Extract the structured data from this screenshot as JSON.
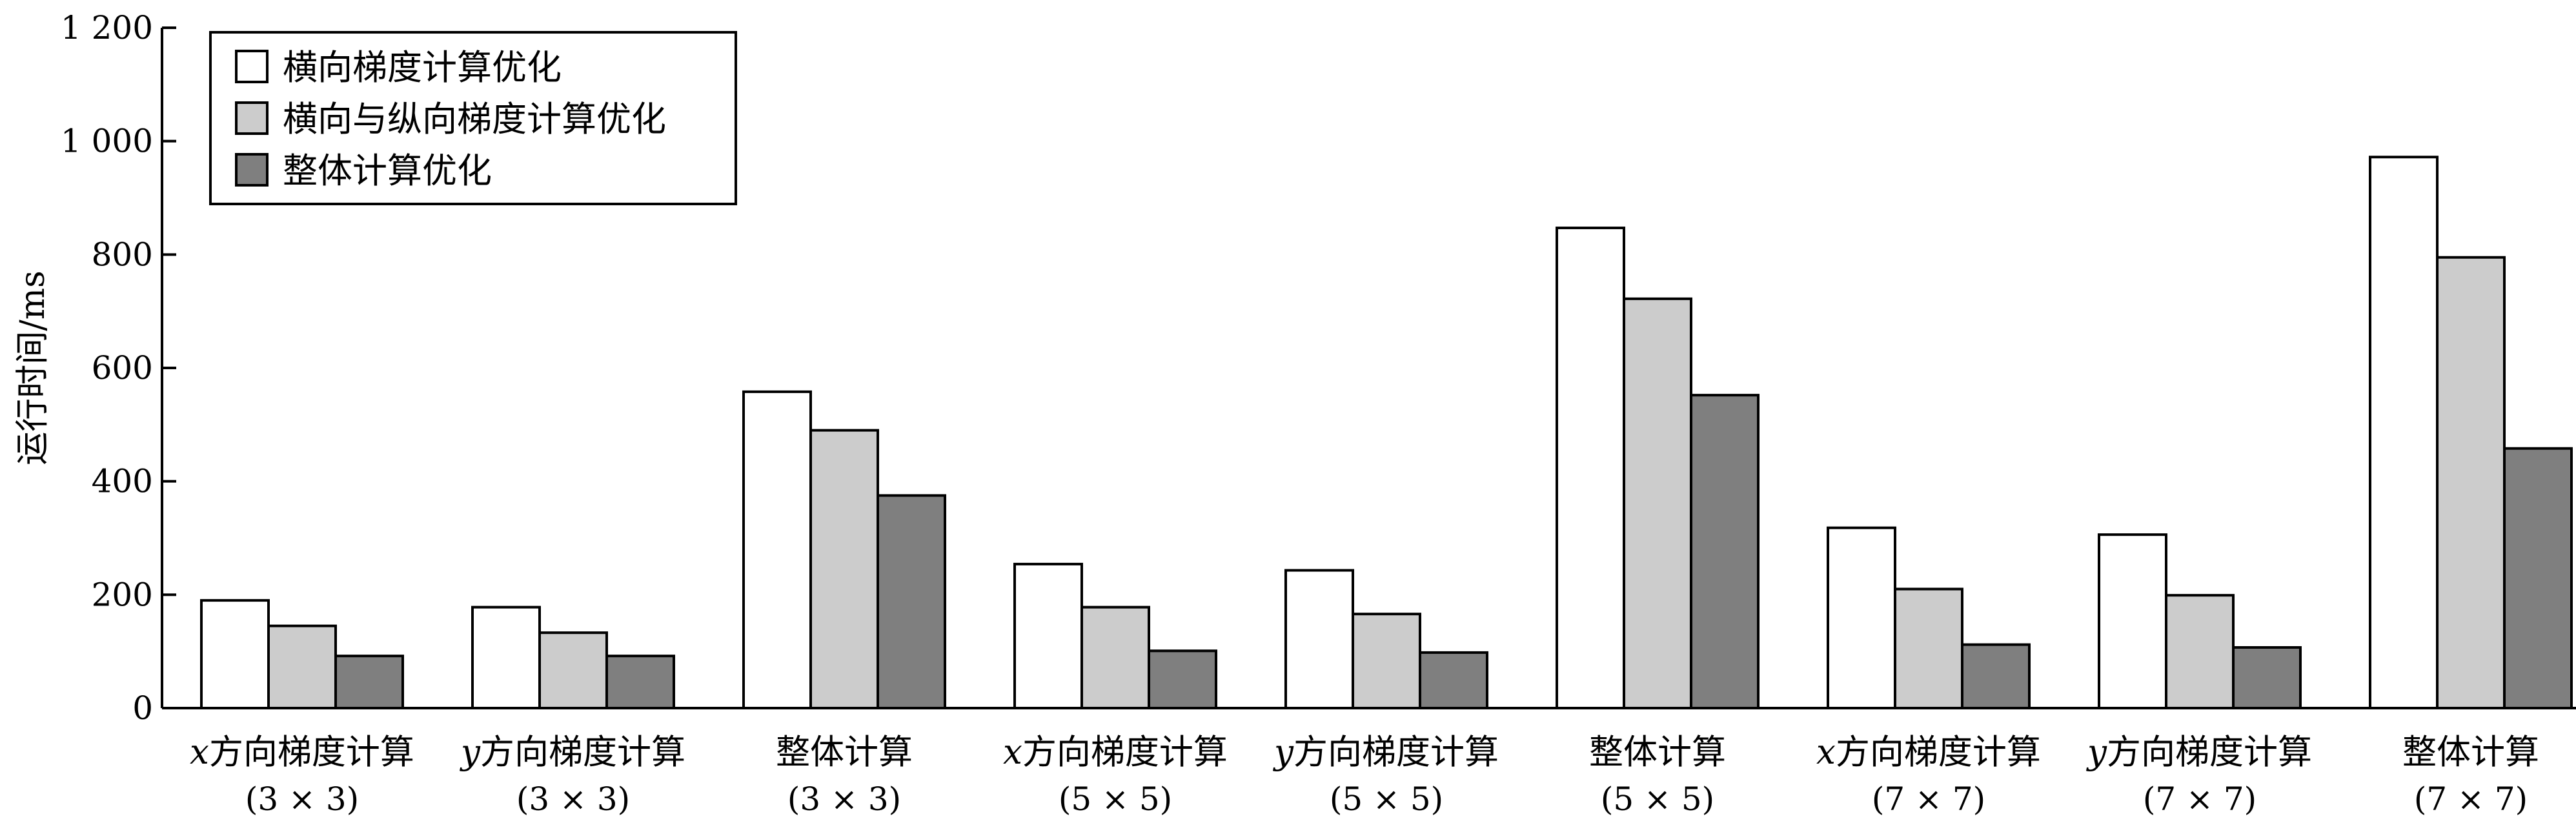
{
  "chart_data": {
    "type": "bar",
    "title": "",
    "xlabel": "",
    "ylabel": "运行时间/ms",
    "ylim": [
      0,
      1200
    ],
    "yticks": [
      0,
      200,
      400,
      600,
      800,
      1000,
      1200
    ],
    "ytick_labels": [
      "0",
      "200",
      "400",
      "600",
      "800",
      "1 000",
      "1 200"
    ],
    "grid": false,
    "legend_position": "top-left",
    "categories": [
      {
        "prefix": "x",
        "name": "方向梯度计算",
        "size": "(3 × 3)"
      },
      {
        "prefix": "y",
        "name": "方向梯度计算",
        "size": "(3 × 3)"
      },
      {
        "prefix": "",
        "name": "整体计算",
        "size": "(3 × 3)"
      },
      {
        "prefix": "x",
        "name": "方向梯度计算",
        "size": "(5 × 5)"
      },
      {
        "prefix": "y",
        "name": "方向梯度计算",
        "size": "(5 × 5)"
      },
      {
        "prefix": "",
        "name": "整体计算",
        "size": "(5 × 5)"
      },
      {
        "prefix": "x",
        "name": "方向梯度计算",
        "size": "(7 × 7)"
      },
      {
        "prefix": "y",
        "name": "方向梯度计算",
        "size": "(7 × 7)"
      },
      {
        "prefix": "",
        "name": "整体计算",
        "size": "(7 × 7)"
      }
    ],
    "series": [
      {
        "name": "横向梯度计算优化",
        "color": "#ffffff",
        "values": [
          190,
          178,
          558,
          254,
          243,
          847,
          318,
          306,
          972
        ]
      },
      {
        "name": "横向与纵向梯度计算优化",
        "color": "#cccccc",
        "values": [
          145,
          133,
          490,
          178,
          166,
          722,
          210,
          199,
          795
        ]
      },
      {
        "name": "整体计算优化",
        "color": "#7f7f7f",
        "values": [
          92,
          92,
          375,
          101,
          98,
          552,
          112,
          107,
          458
        ]
      }
    ]
  }
}
